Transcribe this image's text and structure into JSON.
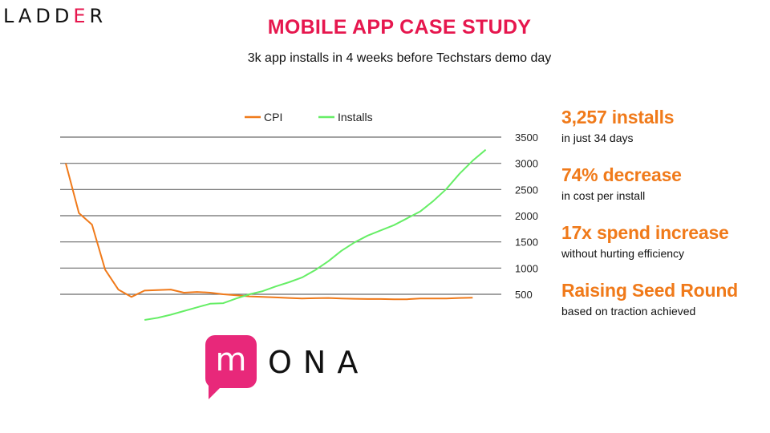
{
  "header": {
    "logo_text": "LADD",
    "logo_accent": "E",
    "logo_end": "R",
    "title": "MOBILE APP CASE STUDY",
    "subtitle": "3k app installs in 4 weeks before Techstars demo day"
  },
  "colors": {
    "title": "#e6174e",
    "cpi": "#f07a1a",
    "installs": "#66ee66",
    "grid": "#6b6b6b",
    "stat": "#f07a1a",
    "brand": "#e8287a"
  },
  "stats": [
    {
      "headline": "3,257 installs",
      "detail": "in just 34 days"
    },
    {
      "headline": "74% decrease",
      "detail": "in cost per install"
    },
    {
      "headline": "17x spend increase",
      "detail": "without hurting efficiency"
    },
    {
      "headline": "Raising Seed Round",
      "detail": "based on traction achieved"
    }
  ],
  "brand": {
    "icon_letter": "m",
    "name": "ONA"
  },
  "chart_data": {
    "type": "line",
    "legend": [
      "CPI",
      "Installs"
    ],
    "legend_position": "top",
    "y_axis": {
      "position": "right",
      "ticks": [
        500,
        1000,
        1500,
        2000,
        2500,
        3000,
        3500
      ],
      "ylim": [
        0,
        3500
      ]
    },
    "grid": true,
    "x": [
      1,
      2,
      3,
      4,
      5,
      6,
      7,
      8,
      9,
      10,
      11,
      12,
      13,
      14,
      15,
      16,
      17,
      18,
      19,
      20,
      21,
      22,
      23,
      24,
      25,
      26,
      27,
      28,
      29,
      30,
      31,
      32,
      33,
      34
    ],
    "series": [
      {
        "name": "CPI",
        "values": [
          3000,
          2050,
          1830,
          970,
          590,
          450,
          570,
          580,
          590,
          530,
          545,
          530,
          500,
          480,
          460,
          450,
          440,
          430,
          420,
          425,
          430,
          420,
          415,
          410,
          410,
          405,
          405,
          420,
          420,
          420,
          430,
          435,
          null,
          null
        ]
      },
      {
        "name": "Installs",
        "values": [
          null,
          null,
          null,
          null,
          null,
          null,
          10,
          50,
          110,
          180,
          250,
          320,
          330,
          420,
          500,
          560,
          650,
          730,
          820,
          960,
          1130,
          1330,
          1490,
          1620,
          1720,
          1820,
          1950,
          2080,
          2280,
          2510,
          2800,
          3050,
          3260,
          null
        ]
      }
    ]
  }
}
